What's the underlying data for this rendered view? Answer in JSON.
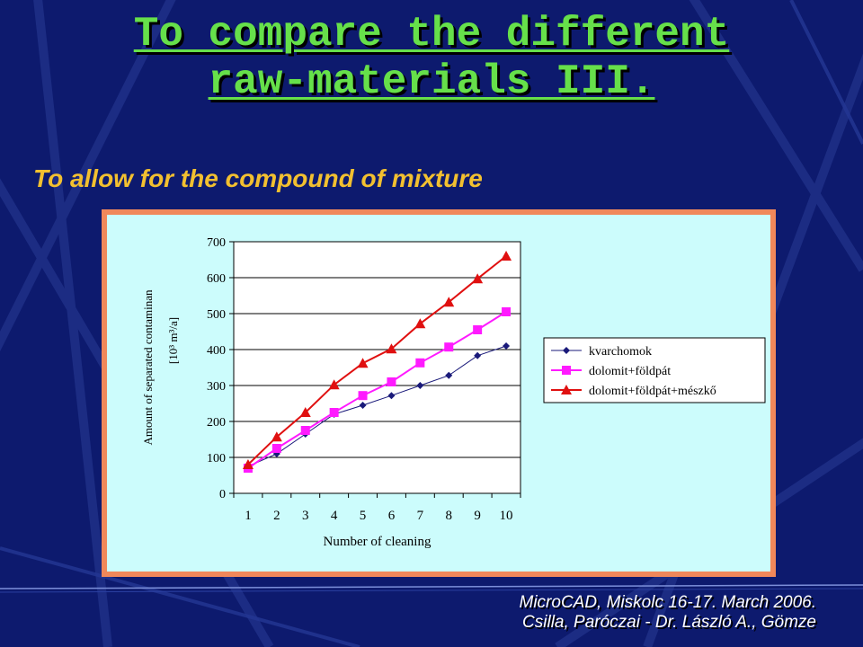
{
  "slide": {
    "title_line1": "To compare the different",
    "title_line2": "raw-materials III.",
    "subtitle": "To allow for the compound of mixture",
    "footer_line1": "MicroCAD, Miskolc 16-17. March 2006.",
    "footer_line2": "Csilla, Paróczai - Dr. László A., Gömze"
  },
  "colors": {
    "background": "#0d1a6e",
    "title": "#66e04a",
    "subtitle": "#f2c030",
    "chart_frame": "#f0885a",
    "chart_bg": "#ccfcfc"
  },
  "chart_data": {
    "type": "line",
    "xlabel": "Number of cleaning",
    "ylabel": "Amount of separated contaminan",
    "ylabel_unit": "[10³ m³/a]",
    "categories": [
      "1",
      "2",
      "3",
      "4",
      "5",
      "6",
      "7",
      "8",
      "9",
      "10"
    ],
    "ylim": [
      0,
      700
    ],
    "yticks": [
      0,
      100,
      200,
      300,
      400,
      500,
      600,
      700
    ],
    "grid": true,
    "legend": "right",
    "series": [
      {
        "name": "kvarchomok",
        "color": "#1a1a7a",
        "marker": "diamond",
        "values": [
          75,
          110,
          165,
          220,
          245,
          272,
          300,
          328,
          383,
          410
        ]
      },
      {
        "name": "dolomit+földpát",
        "color": "#ff1aff",
        "marker": "square",
        "values": [
          70,
          125,
          175,
          225,
          272,
          310,
          363,
          407,
          455,
          505
        ]
      },
      {
        "name": "dolomit+földpát+mészkő",
        "color": "#e01010",
        "marker": "triangle",
        "values": [
          80,
          157,
          225,
          302,
          362,
          402,
          472,
          532,
          597,
          660
        ]
      }
    ]
  }
}
